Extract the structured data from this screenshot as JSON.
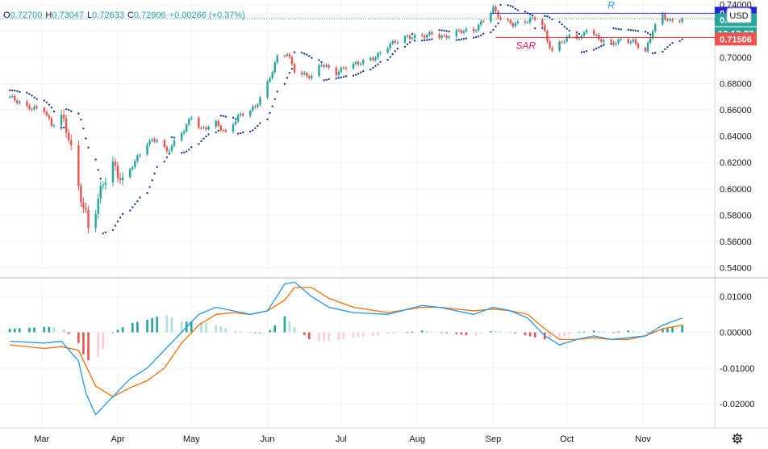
{
  "ohlc": {
    "open_label": "O",
    "open": "0.72700",
    "high_label": "H",
    "high": "0.73047",
    "low_label": "L",
    "low": "0.72633",
    "close_label": "C",
    "close": "0.72906",
    "change": "+0.00266 (+0.37%)"
  },
  "currency_button": "USD",
  "settings_icon": "gear-icon",
  "price_tags": {
    "resistance": "0.73343",
    "last": "0.72906",
    "countdown": "12:17:27",
    "sar": "0.71506"
  },
  "colors": {
    "up": "#26a69a",
    "down": "#ef5350",
    "resistance_line": "#2626d9",
    "sar_line": "#d92626",
    "sar_dots": "#1e3a8a",
    "macd": "#2196f3",
    "signal": "#ff6d00",
    "hist_up_strong": "#26a69a",
    "hist_up_weak": "#b2dfdb",
    "hist_down_strong": "#ef5350",
    "hist_down_weak": "#ffcdd2",
    "label_r": "#2196f3",
    "label_sar": "#e91e63"
  },
  "chart_data": [
    {
      "type": "candlestick",
      "x_labels": [
        "Mar",
        "Apr",
        "May",
        "Jun",
        "Jul",
        "Aug",
        "Sep",
        "Oct",
        "Nov"
      ],
      "y_ticks": [
        "0.74000",
        "0.72000",
        "0.70000",
        "0.68000",
        "0.66000",
        "0.64000",
        "0.62000",
        "0.60000",
        "0.58000",
        "0.56000",
        "0.54000"
      ],
      "ylim": [
        0.533,
        0.7435
      ],
      "annotations": [
        {
          "label": "R",
          "value": 0.73343,
          "from": "2020-08-31",
          "to": "2020-11-17"
        },
        {
          "label": "SAR",
          "value": 0.71506,
          "from": "2020-09-02",
          "to": "2020-11-17"
        }
      ],
      "close_path": [
        [
          "2020-02-17",
          0.67
        ],
        [
          "2020-02-24",
          0.662
        ],
        [
          "2020-03-02",
          0.66
        ],
        [
          "2020-03-05",
          0.648
        ],
        [
          "2020-03-09",
          0.655
        ],
        [
          "2020-03-12",
          0.64
        ],
        [
          "2020-03-16",
          0.6
        ],
        [
          "2020-03-19",
          0.58
        ],
        [
          "2020-03-20",
          0.57
        ],
        [
          "2020-03-23",
          0.585
        ],
        [
          "2020-03-26",
          0.605
        ],
        [
          "2020-03-30",
          0.618
        ],
        [
          "2020-04-03",
          0.605
        ],
        [
          "2020-04-07",
          0.618
        ],
        [
          "2020-04-13",
          0.635
        ],
        [
          "2020-04-17",
          0.638
        ],
        [
          "2020-04-21",
          0.628
        ],
        [
          "2020-04-28",
          0.645
        ],
        [
          "2020-05-01",
          0.655
        ],
        [
          "2020-05-05",
          0.645
        ],
        [
          "2020-05-11",
          0.65
        ],
        [
          "2020-05-15",
          0.642
        ],
        [
          "2020-05-20",
          0.655
        ],
        [
          "2020-05-27",
          0.662
        ],
        [
          "2020-06-01",
          0.68
        ],
        [
          "2020-06-05",
          0.7
        ],
        [
          "2020-06-09",
          0.703
        ],
        [
          "2020-06-12",
          0.69
        ],
        [
          "2020-06-15",
          0.687
        ],
        [
          "2020-06-19",
          0.685
        ],
        [
          "2020-06-23",
          0.695
        ],
        [
          "2020-06-29",
          0.688
        ],
        [
          "2020-07-03",
          0.693
        ],
        [
          "2020-07-09",
          0.696
        ],
        [
          "2020-07-15",
          0.7
        ],
        [
          "2020-07-21",
          0.71
        ],
        [
          "2020-07-27",
          0.715
        ],
        [
          "2020-08-03",
          0.716
        ],
        [
          "2020-08-07",
          0.718
        ],
        [
          "2020-08-12",
          0.715
        ],
        [
          "2020-08-18",
          0.72
        ],
        [
          "2020-08-24",
          0.72
        ],
        [
          "2020-08-28",
          0.728
        ],
        [
          "2020-09-01",
          0.737
        ],
        [
          "2020-09-04",
          0.729
        ],
        [
          "2020-09-09",
          0.725
        ],
        [
          "2020-09-14",
          0.727
        ],
        [
          "2020-09-18",
          0.73
        ],
        [
          "2020-09-21",
          0.725
        ],
        [
          "2020-09-23",
          0.712
        ],
        [
          "2020-09-25",
          0.705
        ],
        [
          "2020-09-29",
          0.712
        ],
        [
          "2020-10-02",
          0.716
        ],
        [
          "2020-10-07",
          0.715
        ],
        [
          "2020-10-09",
          0.722
        ],
        [
          "2020-10-14",
          0.714
        ],
        [
          "2020-10-19",
          0.71
        ],
        [
          "2020-10-23",
          0.713
        ],
        [
          "2020-10-28",
          0.712
        ],
        [
          "2020-11-02",
          0.704
        ],
        [
          "2020-11-05",
          0.721
        ],
        [
          "2020-11-09",
          0.732
        ],
        [
          "2020-11-12",
          0.727
        ],
        [
          "2020-11-17",
          0.72906
        ]
      ]
    },
    {
      "type": "macd",
      "y_ticks": [
        "0.01000",
        "0.00000",
        "-0.01000",
        "-0.02000"
      ],
      "ylim": [
        -0.0265,
        0.015
      ],
      "macd": [
        [
          "2020-02-17",
          -0.0025
        ],
        [
          "2020-03-02",
          -0.003
        ],
        [
          "2020-03-09",
          -0.0025
        ],
        [
          "2020-03-16",
          -0.008
        ],
        [
          "2020-03-19",
          -0.017
        ],
        [
          "2020-03-23",
          -0.023
        ],
        [
          "2020-03-30",
          -0.018
        ],
        [
          "2020-04-06",
          -0.013
        ],
        [
          "2020-04-13",
          -0.01
        ],
        [
          "2020-04-20",
          -0.005
        ],
        [
          "2020-04-27",
          0.0
        ],
        [
          "2020-05-04",
          0.005
        ],
        [
          "2020-05-11",
          0.007
        ],
        [
          "2020-05-18",
          0.006
        ],
        [
          "2020-05-25",
          0.005
        ],
        [
          "2020-06-01",
          0.006
        ],
        [
          "2020-06-08",
          0.0135
        ],
        [
          "2020-06-12",
          0.014
        ],
        [
          "2020-06-19",
          0.01
        ],
        [
          "2020-06-26",
          0.007
        ],
        [
          "2020-07-06",
          0.0055
        ],
        [
          "2020-07-20",
          0.005
        ],
        [
          "2020-08-03",
          0.0075
        ],
        [
          "2020-08-10",
          0.007
        ],
        [
          "2020-08-24",
          0.005
        ],
        [
          "2020-09-01",
          0.007
        ],
        [
          "2020-09-08",
          0.006
        ],
        [
          "2020-09-15",
          0.004
        ],
        [
          "2020-09-22",
          -0.001
        ],
        [
          "2020-09-28",
          -0.0035
        ],
        [
          "2020-10-05",
          -0.002
        ],
        [
          "2020-10-12",
          -0.001
        ],
        [
          "2020-10-19",
          -0.002
        ],
        [
          "2020-10-26",
          -0.0015
        ],
        [
          "2020-11-02",
          -0.001
        ],
        [
          "2020-11-09",
          0.002
        ],
        [
          "2020-11-17",
          0.004
        ]
      ],
      "signal": [
        [
          "2020-02-17",
          -0.0035
        ],
        [
          "2020-03-02",
          -0.0045
        ],
        [
          "2020-03-09",
          -0.004
        ],
        [
          "2020-03-16",
          -0.005
        ],
        [
          "2020-03-23",
          -0.015
        ],
        [
          "2020-03-30",
          -0.018
        ],
        [
          "2020-04-06",
          -0.0155
        ],
        [
          "2020-04-13",
          -0.0135
        ],
        [
          "2020-04-20",
          -0.01
        ],
        [
          "2020-04-27",
          -0.003
        ],
        [
          "2020-05-04",
          0.002
        ],
        [
          "2020-05-11",
          0.005
        ],
        [
          "2020-05-18",
          0.0055
        ],
        [
          "2020-05-25",
          0.005
        ],
        [
          "2020-06-01",
          0.006
        ],
        [
          "2020-06-08",
          0.009
        ],
        [
          "2020-06-12",
          0.0125
        ],
        [
          "2020-06-19",
          0.0125
        ],
        [
          "2020-06-26",
          0.0095
        ],
        [
          "2020-07-06",
          0.007
        ],
        [
          "2020-07-20",
          0.0055
        ],
        [
          "2020-08-03",
          0.007
        ],
        [
          "2020-08-10",
          0.007
        ],
        [
          "2020-08-24",
          0.006
        ],
        [
          "2020-09-01",
          0.0065
        ],
        [
          "2020-09-08",
          0.006
        ],
        [
          "2020-09-15",
          0.005
        ],
        [
          "2020-09-22",
          0.001
        ],
        [
          "2020-09-28",
          -0.002
        ],
        [
          "2020-10-05",
          -0.002
        ],
        [
          "2020-10-12",
          -0.0015
        ],
        [
          "2020-10-19",
          -0.002
        ],
        [
          "2020-10-26",
          -0.002
        ],
        [
          "2020-11-02",
          -0.001
        ],
        [
          "2020-11-09",
          0.001
        ],
        [
          "2020-11-17",
          0.002
        ]
      ]
    }
  ]
}
